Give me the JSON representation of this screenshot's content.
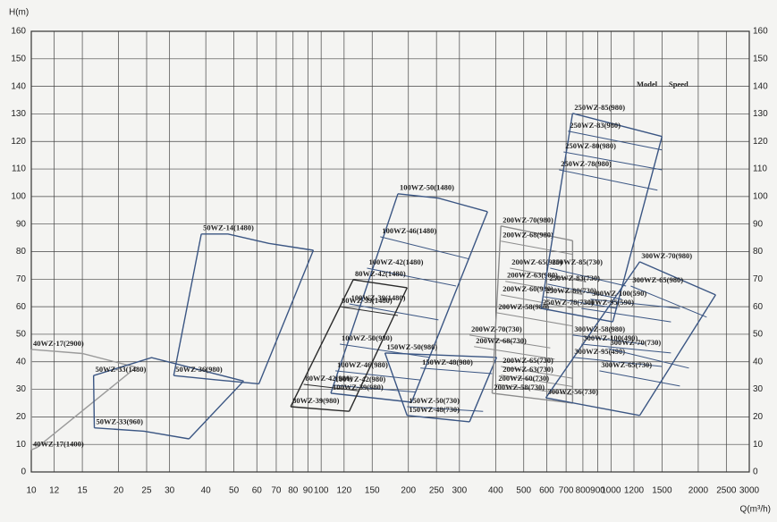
{
  "chart_data": {
    "type": "line",
    "x_label": "Q(m³/h)",
    "y_label": "H(m)",
    "x_scale": "log",
    "grid": true,
    "xlim": [
      10,
      3000
    ],
    "xticks": [
      10,
      12,
      15,
      20,
      25,
      30,
      40,
      50,
      60,
      70,
      80,
      90,
      100,
      120,
      150,
      200,
      250,
      300,
      400,
      500,
      600,
      700,
      800,
      900,
      1000,
      1200,
      1500,
      2000,
      2500,
      3000
    ],
    "ylim": [
      0,
      160
    ],
    "yticks": [
      0,
      10,
      20,
      30,
      40,
      50,
      60,
      70,
      80,
      90,
      100,
      110,
      120,
      130,
      140,
      150,
      160
    ],
    "legend_texts": [
      "Model",
      "Speed"
    ],
    "groups": [
      {
        "color": "#9a9a9a",
        "curves": [
          {
            "name": "40WZ-17(2900)",
            "x": [
              10,
              15,
              23
            ],
            "values": [
              44.5,
              43,
              38
            ]
          },
          {
            "name": "40WZ-17(1400)",
            "x": [
              10,
              10.5
            ],
            "values": [
              8,
              9
            ]
          }
        ]
      },
      {
        "color": "#3b5683",
        "curves": [
          {
            "name": "50WZ-33(1480)",
            "x": [
              16.4,
              26,
              54
            ],
            "values": [
              35,
              41.5,
              33
            ]
          },
          {
            "name": "50WZ-33(960)",
            "x": [
              16.5,
              24.5,
              35
            ],
            "values": [
              16,
              14.8,
              12
            ]
          }
        ]
      },
      {
        "color": "#3b5683",
        "curves": [
          {
            "name": "50WZ-14(1480)",
            "x": [
              38.6,
              47.7,
              66,
              94
            ],
            "values": [
              86.4,
              86.4,
              83,
              80.5
            ]
          },
          {
            "name": "50WZ-36(980)",
            "x": [
              31,
              43,
              61
            ],
            "values": [
              35,
              33.5,
              32
            ]
          }
        ]
      },
      {
        "color": "#3b5683",
        "curves": [
          {
            "name": "100WZ-50(1480)",
            "x": [
              184,
              254,
              375
            ],
            "values": [
              101,
              99.4,
              94.5
            ]
          },
          {
            "name": "100WZ-46(1480)",
            "x": [
              160,
              325
            ],
            "values": [
              85.4,
              77.3
            ]
          },
          {
            "name": "100WZ-42(1480)",
            "x": [
              144,
              292
            ],
            "values": [
              74,
              67.5
            ]
          },
          {
            "name": "100WZ-39(1480)",
            "x": [
              125,
              254
            ],
            "values": [
              61,
              55.2
            ]
          },
          {
            "name": "100WZ-50(980)",
            "x": [
              116,
              236
            ],
            "values": [
              46.4,
              41.6
            ]
          },
          {
            "name": "100WZ-46(980)",
            "x": [
              112,
              220
            ],
            "values": [
              36.7,
              33.4
            ]
          },
          {
            "name": "100WZ-42(980)",
            "x": [
              110,
              212
            ],
            "values": [
              31.5,
              29
            ]
          },
          {
            "name": "100WZ-39(980)",
            "x": [
              108,
              205
            ],
            "values": [
              28.6,
              25.3
            ]
          }
        ]
      },
      {
        "color": "#2a2a2a",
        "curves": [
          {
            "name": "80WZ-42(1480)",
            "x": [
              129,
              198
            ],
            "values": [
              69.8,
              66.9
            ]
          },
          {
            "name": "80WZ-39(1480)",
            "x": [
              116,
              184
            ],
            "values": [
              60,
              56.8
            ]
          },
          {
            "name": "80WZ-42(980)",
            "x": [
              87,
              134
            ],
            "values": [
              31.8,
              29.5
            ]
          },
          {
            "name": "80WZ-39(980)",
            "x": [
              78.5,
              125
            ],
            "values": [
              23.7,
              22
            ]
          }
        ]
      },
      {
        "color": "#3b5683",
        "curves": [
          {
            "name": "150WZ-50(980)",
            "x": [
              166,
              403
            ],
            "values": [
              43.2,
              41.6
            ]
          },
          {
            "name": "150WZ-48(980)",
            "x": [
              220,
              389
            ],
            "values": [
              37.7,
              35.7
            ]
          },
          {
            "name": "150WZ-50(730)",
            "x": [
              198,
              362
            ],
            "values": [
              23.7,
              22
            ]
          },
          {
            "name": "150WZ-48(730)",
            "x": [
              198,
              325
            ],
            "values": [
              20.5,
              18.2
            ]
          }
        ]
      },
      {
        "color": "#8c8c8c",
        "curves": [
          {
            "name": "200WZ-70(980)",
            "x": [
              417,
              737
            ],
            "values": [
              89.3,
              84
            ]
          },
          {
            "name": "200WZ-68(980)",
            "x": [
              417,
              737
            ],
            "values": [
              83.8,
              79
            ]
          },
          {
            "name": "200WZ-65(980)",
            "x": [
              448,
              820
            ],
            "values": [
              74,
              69
            ]
          },
          {
            "name": "200WZ-63(980)",
            "x": [
              432,
              791
            ],
            "values": [
              69.2,
              64.5
            ]
          },
          {
            "name": "200WZ-60(980)",
            "x": [
              417,
              737
            ],
            "values": [
              64.3,
              59.5
            ]
          },
          {
            "name": "200WZ-58(980)",
            "x": [
              403,
              737
            ],
            "values": [
              57.8,
              53
            ]
          },
          {
            "name": "200WZ-70(730)",
            "x": [
              325,
              617
            ],
            "values": [
              49.7,
              45
            ]
          },
          {
            "name": "200WZ-68(730)",
            "x": [
              337,
              639
            ],
            "values": [
              45.5,
              41
            ]
          },
          {
            "name": "200WZ-65(730)",
            "x": [
              417,
              737
            ],
            "values": [
              38.3,
              34
            ]
          },
          {
            "name": "200WZ-63(730)",
            "x": [
              417,
              737
            ],
            "values": [
              35.1,
              31
            ]
          },
          {
            "name": "200WZ-60(730)",
            "x": [
              403,
              737
            ],
            "values": [
              31.8,
              28
            ]
          },
          {
            "name": "200WZ-58(730)",
            "x": [
              389,
              737
            ],
            "values": [
              28.6,
              25
            ]
          }
        ]
      },
      {
        "color": "#3b5683",
        "curves": [
          {
            "name": "250WZ-85(980)",
            "x": [
              737,
              1500
            ],
            "values": [
              130.2,
              121.8
            ]
          },
          {
            "name": "250WZ-83(980)",
            "x": [
              711,
              1500
            ],
            "values": [
              123.7,
              116.9
            ]
          },
          {
            "name": "250WZ-80(980)",
            "x": [
              686,
              1500
            ],
            "values": [
              116.2,
              109.7
            ]
          },
          {
            "name": "250WZ-78(980)",
            "x": [
              662,
              1446
            ],
            "values": [
              109.7,
              102.3
            ]
          },
          {
            "name": "250WZ-85(730)",
            "x": [
              617,
              1127
            ],
            "values": [
              74,
              67.5
            ]
          },
          {
            "name": "250WZ-83(730)",
            "x": [
              604,
              1089
            ],
            "values": [
              68.2,
              62.7
            ]
          },
          {
            "name": "250WZ-80(730)",
            "x": [
              587,
              1051
            ],
            "values": [
              63.6,
              59.4
            ]
          },
          {
            "name": "250WZ-78(730)",
            "x": [
              574,
              1014
            ],
            "values": [
              59.4,
              54.5
            ]
          }
        ]
      },
      {
        "color": "#3b5683",
        "curves": [
          {
            "name": "300WZ-70(980)",
            "x": [
              1256,
              2296
            ],
            "values": [
              76.3,
              64.3
            ]
          },
          {
            "name": "300WZ-65(980)",
            "x": [
              1170,
              2138
            ],
            "values": [
              67.5,
              56.2
            ]
          },
          {
            "name": "300WZ-100(590)",
            "x": [
              849,
              1729
            ],
            "values": [
              62.7,
              59.4
            ]
          },
          {
            "name": "300WZ-95(590)",
            "x": [
              791,
              1610
            ],
            "values": [
              59.4,
              54.5
            ]
          },
          {
            "name": "300WZ-58(980)",
            "x": [
              737,
              1300
            ],
            "values": [
              49.7,
              46.4
            ]
          },
          {
            "name": "300WZ-100(490)",
            "x": [
              791,
              1610
            ],
            "values": [
              46.4,
              43.2
            ]
          },
          {
            "name": "300WZ-95(490)",
            "x": [
              737,
              1500
            ],
            "values": [
              41.6,
              38.3
            ]
          },
          {
            "name": "300WZ-70(730)",
            "x": [
              980,
              1857
            ],
            "values": [
              44.8,
              37.7
            ]
          },
          {
            "name": "300WZ-65(730)",
            "x": [
              912,
              1729
            ],
            "values": [
              36.7,
              31.2
            ]
          },
          {
            "name": "300WZ-56(730)",
            "x": [
              596,
              1256
            ],
            "values": [
              26.9,
              20.5
            ]
          }
        ]
      }
    ]
  }
}
